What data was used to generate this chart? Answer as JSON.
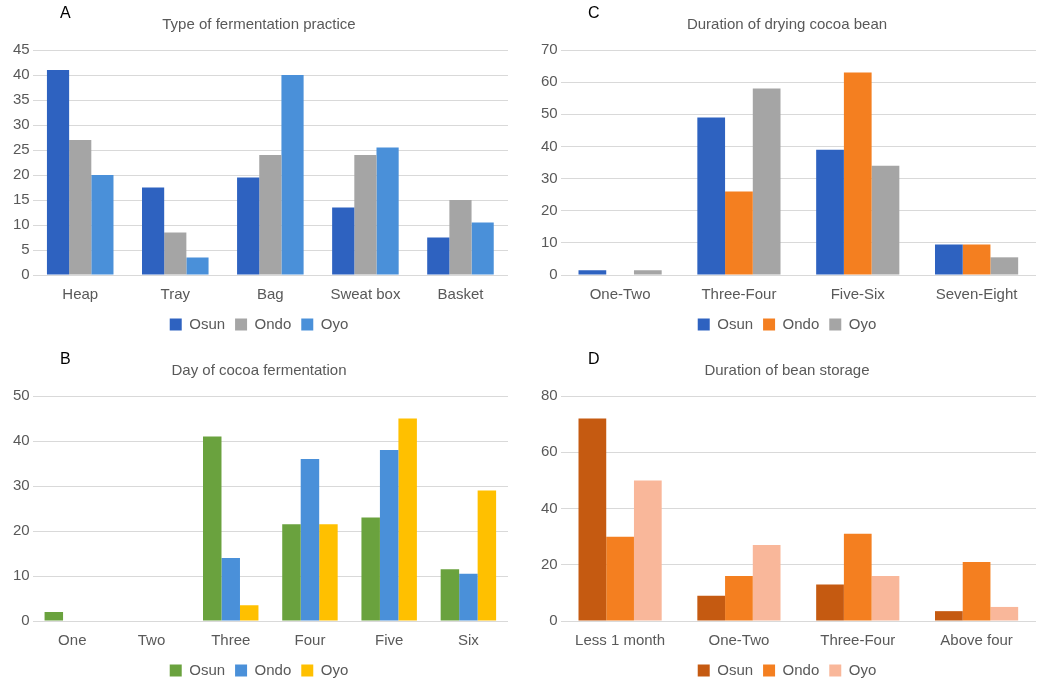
{
  "chart_data": [
    {
      "type": "bar",
      "title": "Type of fermentation practice",
      "annotations": [
        "A"
      ],
      "categories": [
        "Heap",
        "Tray",
        "Bag",
        "Sweat box",
        "Basket"
      ],
      "series": [
        {
          "name": "Osun",
          "color": "#2e62c0",
          "values": [
            41,
            17.5,
            19.5,
            13.5,
            7.5
          ]
        },
        {
          "name": "Ondo",
          "color": "#a5a5a5",
          "values": [
            27,
            8.5,
            24,
            24,
            15
          ]
        },
        {
          "name": "Oyo",
          "color": "#4a90d9",
          "values": [
            20,
            3.5,
            40,
            25.5,
            10.5
          ]
        }
      ],
      "ylim": [
        0,
        45
      ],
      "yticks": [
        0,
        5,
        10,
        15,
        20,
        25,
        30,
        35,
        40,
        45
      ],
      "grid": "y",
      "legend": "bottom"
    },
    {
      "type": "bar",
      "title": "Duration of drying cocoa bean",
      "annotations": [
        "C"
      ],
      "categories": [
        "One-Two",
        "Three-Four",
        "Five-Six",
        "Seven-Eight"
      ],
      "series": [
        {
          "name": "Osun",
          "color": "#2e62c0",
          "values": [
            1.5,
            49,
            39,
            9.5
          ]
        },
        {
          "name": "Ondo",
          "color": "#f47f20",
          "values": [
            0,
            26,
            63,
            9.5
          ]
        },
        {
          "name": "Oyo",
          "color": "#a5a5a5",
          "values": [
            1.5,
            58,
            34,
            5.5
          ]
        }
      ],
      "ylim": [
        0,
        70
      ],
      "yticks": [
        0,
        10,
        20,
        30,
        40,
        50,
        60,
        70
      ],
      "grid": "y",
      "legend": "bottom"
    },
    {
      "type": "bar",
      "title": "Day of cocoa fermentation",
      "annotations": [
        "B"
      ],
      "categories": [
        "One",
        "Two",
        "Three",
        "Four",
        "Five",
        "Six"
      ],
      "series": [
        {
          "name": "Osun",
          "color": "#6aa23e",
          "values": [
            2,
            0,
            41,
            21.5,
            23,
            11.5
          ]
        },
        {
          "name": "Ondo",
          "color": "#4a90d9",
          "values": [
            0,
            0,
            14,
            36,
            38,
            10.5
          ]
        },
        {
          "name": "Oyo",
          "color": "#ffc000",
          "values": [
            0,
            0,
            3.5,
            21.5,
            45,
            29
          ]
        }
      ],
      "ylim": [
        0,
        50
      ],
      "yticks": [
        0,
        10,
        20,
        30,
        40,
        50
      ],
      "grid": "y",
      "legend": "bottom"
    },
    {
      "type": "bar",
      "title": "Duration of bean storage",
      "annotations": [
        "D"
      ],
      "categories": [
        "Less 1 month",
        "One-Two",
        "Three-Four",
        "Above four"
      ],
      "series": [
        {
          "name": "Osun",
          "color": "#c55a11",
          "values": [
            72,
            9,
            13,
            3.5
          ]
        },
        {
          "name": "Ondo",
          "color": "#f47f20",
          "values": [
            30,
            16,
            31,
            21
          ]
        },
        {
          "name": "Oyo",
          "color": "#f9b79a",
          "values": [
            50,
            27,
            16,
            5
          ]
        }
      ],
      "ylim": [
        0,
        80
      ],
      "yticks": [
        0,
        20,
        40,
        60,
        80
      ],
      "grid": "y",
      "legend": "bottom"
    }
  ]
}
